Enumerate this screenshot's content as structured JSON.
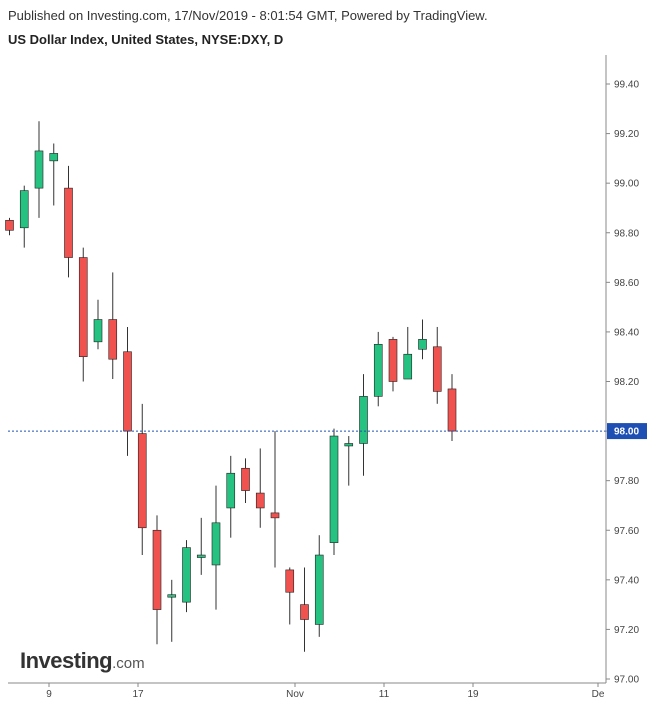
{
  "header": {
    "published": "Published on Investing.com, 17/Nov/2019 - 8:01:54 GMT, Powered by TradingView.",
    "title": "US Dollar Index, United States, NYSE:DXY, D"
  },
  "watermark": {
    "brand": "Investing",
    "suffix": ".com"
  },
  "colors": {
    "up": "#26c281",
    "down": "#f0524f",
    "wick": "#333333",
    "last_price_line": "#1e50b4",
    "price_badge": "#1e50b4"
  },
  "chart_data": {
    "type": "candlestick",
    "title": "US Dollar Index, United States, NYSE:DXY, D",
    "ylim": [
      97.0,
      99.5
    ],
    "yticks": [
      "99.40",
      "99.20",
      "99.00",
      "98.80",
      "98.60",
      "98.40",
      "98.20",
      "98.00",
      "97.80",
      "97.60",
      "97.40",
      "97.20",
      "97.00"
    ],
    "xticks": [
      "9",
      "17",
      "Nov",
      "11",
      "19",
      "De"
    ],
    "last_price": "98.00",
    "candles": [
      {
        "o": 98.85,
        "h": 98.86,
        "l": 98.79,
        "c": 98.81
      },
      {
        "o": 98.82,
        "h": 98.99,
        "l": 98.74,
        "c": 98.97
      },
      {
        "o": 98.98,
        "h": 99.25,
        "l": 98.86,
        "c": 99.13
      },
      {
        "o": 99.09,
        "h": 99.16,
        "l": 98.91,
        "c": 99.12
      },
      {
        "o": 98.98,
        "h": 99.07,
        "l": 98.62,
        "c": 98.7
      },
      {
        "o": 98.7,
        "h": 98.74,
        "l": 98.2,
        "c": 98.3
      },
      {
        "o": 98.36,
        "h": 98.53,
        "l": 98.33,
        "c": 98.45
      },
      {
        "o": 98.45,
        "h": 98.64,
        "l": 98.21,
        "c": 98.29
      },
      {
        "o": 98.32,
        "h": 98.42,
        "l": 97.9,
        "c": 98.0
      },
      {
        "o": 97.99,
        "h": 98.11,
        "l": 97.5,
        "c": 97.61
      },
      {
        "o": 97.6,
        "h": 97.66,
        "l": 97.14,
        "c": 97.28
      },
      {
        "o": 97.33,
        "h": 97.4,
        "l": 97.15,
        "c": 97.34
      },
      {
        "o": 97.31,
        "h": 97.56,
        "l": 97.27,
        "c": 97.53
      },
      {
        "o": 97.49,
        "h": 97.65,
        "l": 97.42,
        "c": 97.5
      },
      {
        "o": 97.46,
        "h": 97.78,
        "l": 97.28,
        "c": 97.63
      },
      {
        "o": 97.69,
        "h": 97.9,
        "l": 97.57,
        "c": 97.83
      },
      {
        "o": 97.85,
        "h": 97.89,
        "l": 97.71,
        "c": 97.76
      },
      {
        "o": 97.75,
        "h": 97.93,
        "l": 97.61,
        "c": 97.69
      },
      {
        "o": 97.67,
        "h": 98.0,
        "l": 97.45,
        "c": 97.65
      },
      {
        "o": 97.44,
        "h": 97.45,
        "l": 97.22,
        "c": 97.35
      },
      {
        "o": 97.3,
        "h": 97.45,
        "l": 97.11,
        "c": 97.24
      },
      {
        "o": 97.22,
        "h": 97.58,
        "l": 97.17,
        "c": 97.5
      },
      {
        "o": 97.55,
        "h": 98.01,
        "l": 97.5,
        "c": 97.98
      },
      {
        "o": 97.94,
        "h": 97.98,
        "l": 97.78,
        "c": 97.95
      },
      {
        "o": 97.95,
        "h": 98.23,
        "l": 97.82,
        "c": 98.14
      },
      {
        "o": 98.14,
        "h": 98.4,
        "l": 98.1,
        "c": 98.35
      },
      {
        "o": 98.37,
        "h": 98.38,
        "l": 98.16,
        "c": 98.2
      },
      {
        "o": 98.21,
        "h": 98.42,
        "l": 98.21,
        "c": 98.31
      },
      {
        "o": 98.33,
        "h": 98.45,
        "l": 98.29,
        "c": 98.37
      },
      {
        "o": 98.34,
        "h": 98.42,
        "l": 98.11,
        "c": 98.16
      },
      {
        "o": 98.17,
        "h": 98.23,
        "l": 97.96,
        "c": 98.0
      }
    ]
  }
}
